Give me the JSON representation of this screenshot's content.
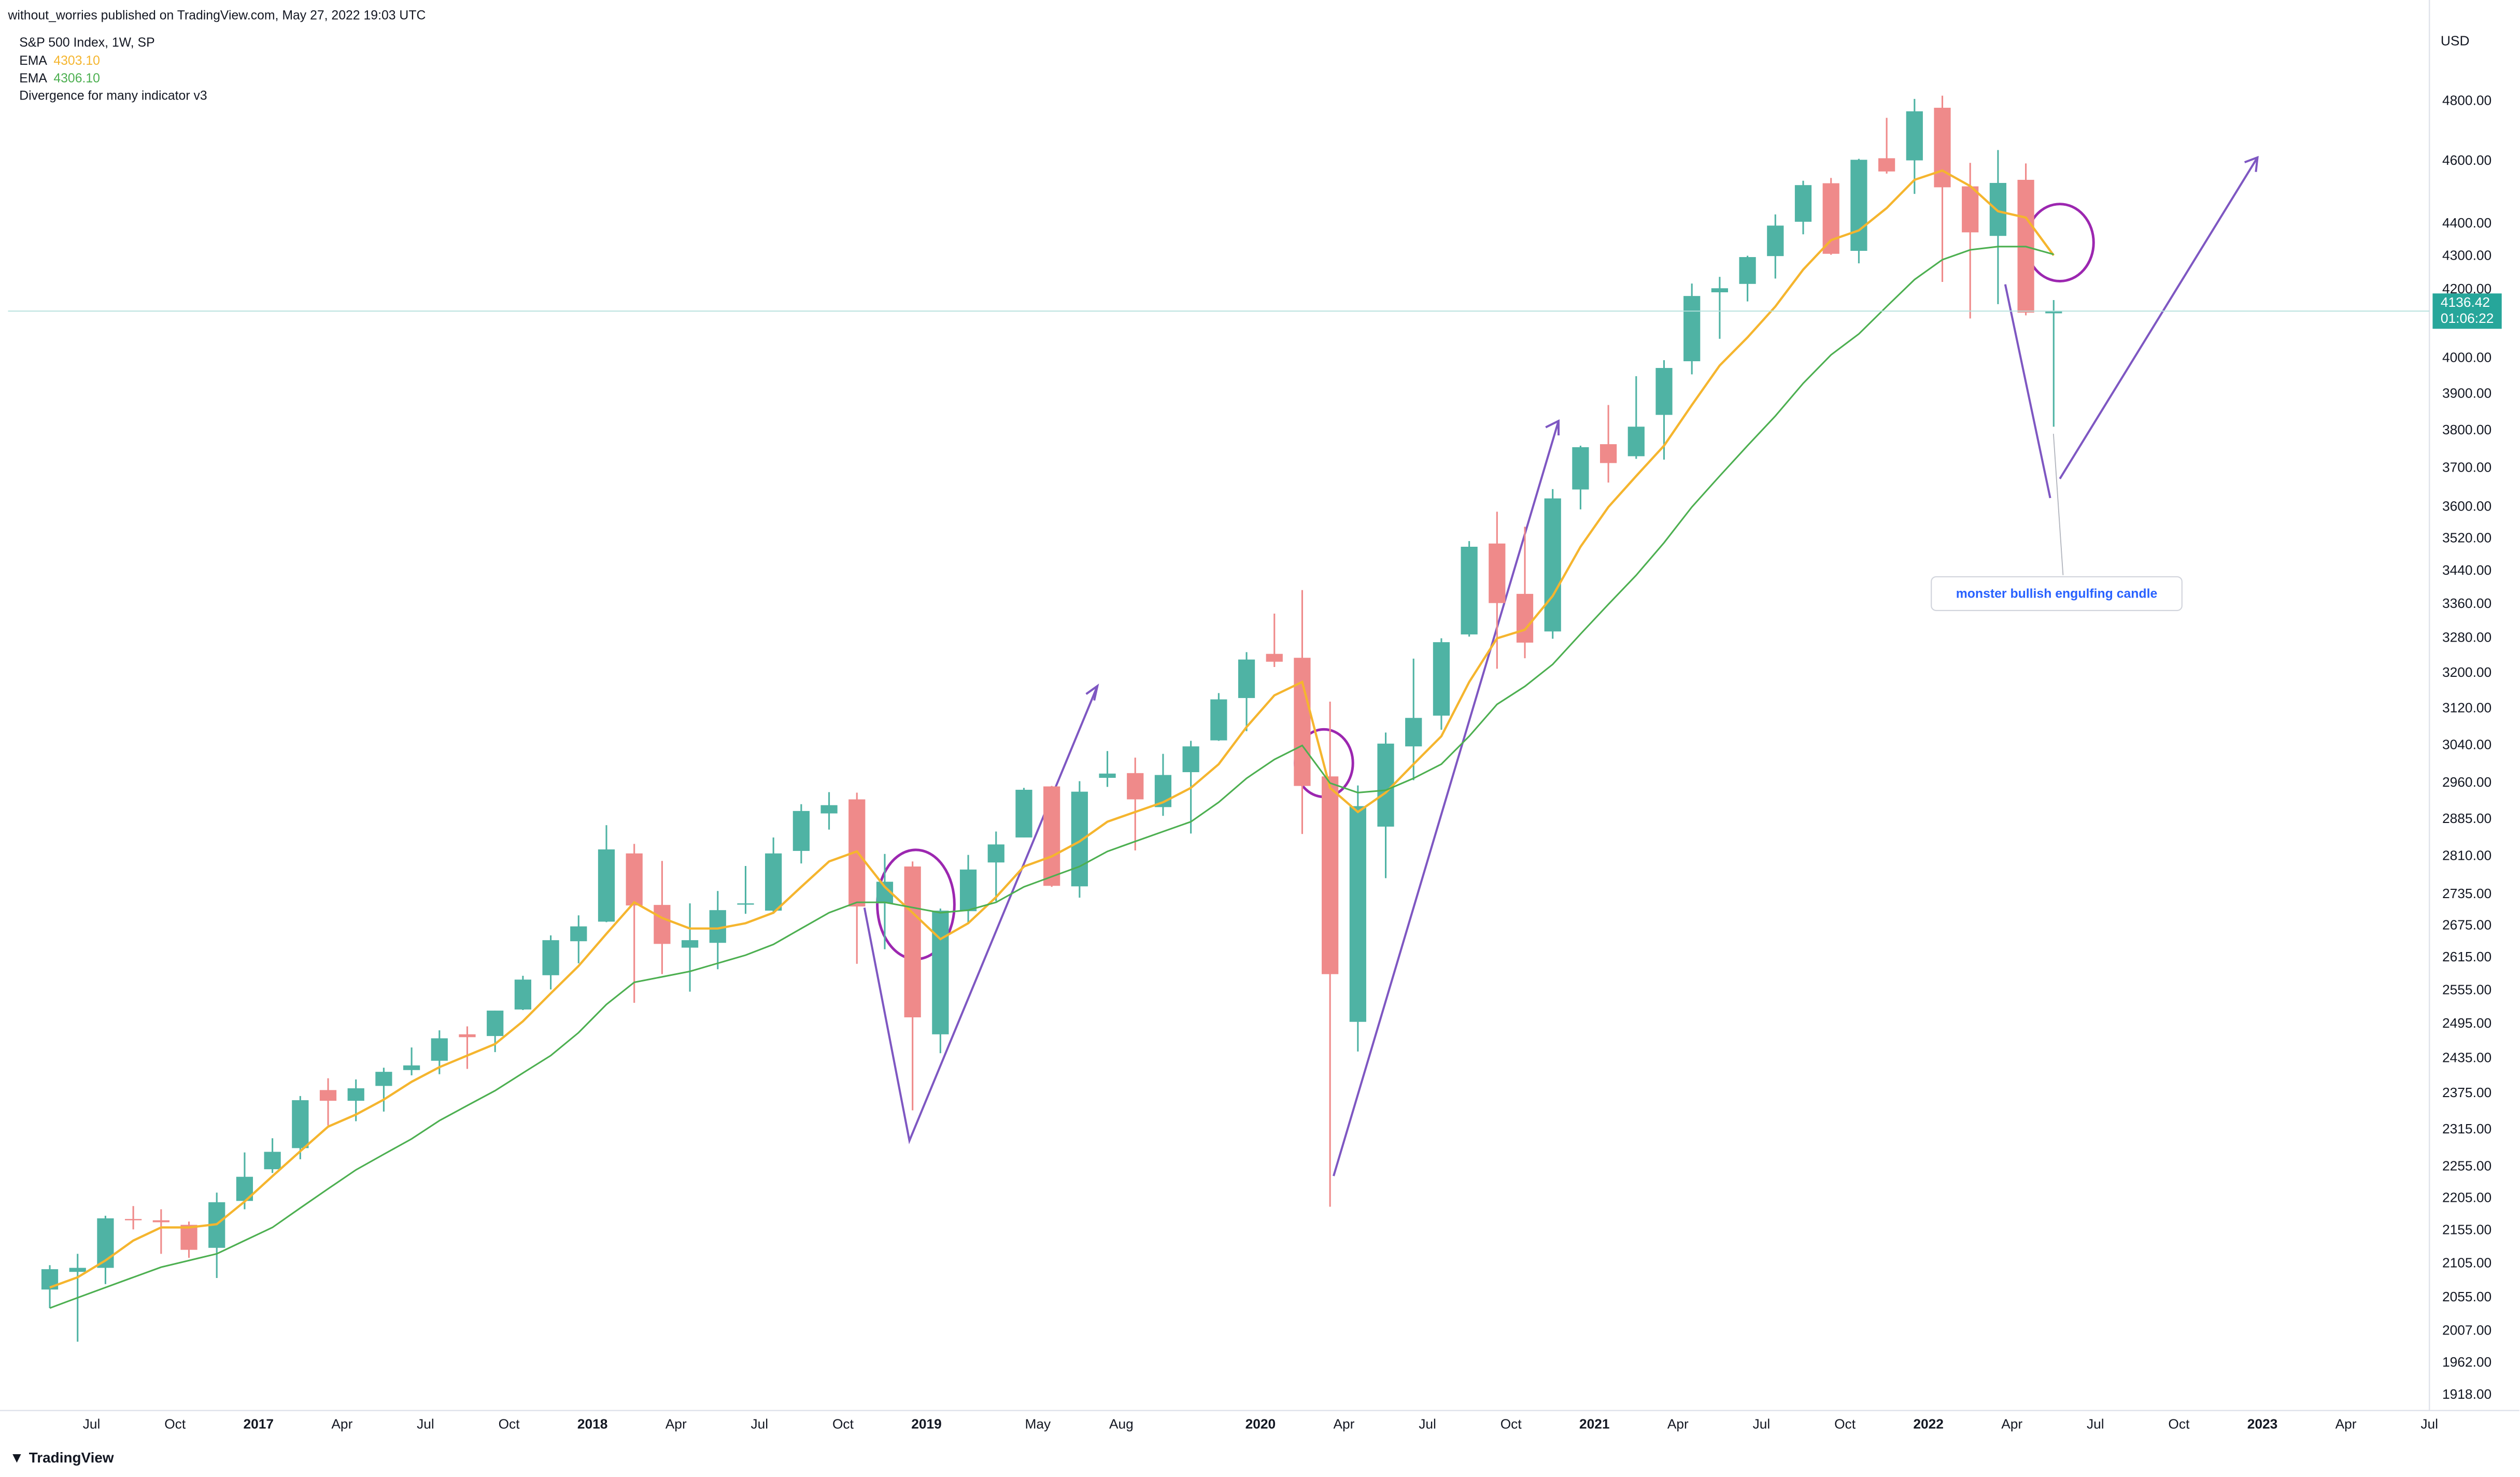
{
  "chart_data": {
    "type": "candlestick",
    "publisher": "without_worries published on TradingView.com, May 27, 2022 19:03 UTC",
    "title": "S&P 500 Index, 1W, SP",
    "indicator": "Divergence for many indicator v3",
    "currency": "USD",
    "countdown": "01:06:22",
    "annotation": "monster bullish engulfing candle",
    "brand": "TradingView",
    "log_scale": true,
    "grid": false,
    "up_color": "#4fb3a4",
    "down_color": "#ef8a8a",
    "x": [
      "2016-05",
      "2016-06",
      "2016-07",
      "2016-08",
      "2016-09",
      "2016-10",
      "2016-11",
      "2016-12",
      "2017-01",
      "2017-02",
      "2017-03",
      "2017-04",
      "2017-05",
      "2017-06",
      "2017-07",
      "2017-08",
      "2017-09",
      "2017-10",
      "2017-11",
      "2017-12",
      "2018-01",
      "2018-02",
      "2018-03",
      "2018-04",
      "2018-05",
      "2018-06",
      "2018-07",
      "2018-08",
      "2018-09",
      "2018-10",
      "2018-11",
      "2018-12",
      "2019-01",
      "2019-02",
      "2019-03",
      "2019-04",
      "2019-05",
      "2019-06",
      "2019-07",
      "2019-08",
      "2019-09",
      "2019-10",
      "2019-11",
      "2019-12",
      "2020-01",
      "2020-02",
      "2020-03",
      "2020-04",
      "2020-05",
      "2020-06",
      "2020-07",
      "2020-08",
      "2020-09",
      "2020-10",
      "2020-11",
      "2020-12",
      "2021-01",
      "2021-02",
      "2021-03",
      "2021-04",
      "2021-05",
      "2021-06",
      "2021-07",
      "2021-08",
      "2021-09",
      "2021-10",
      "2021-11",
      "2021-12",
      "2022-01",
      "2022-02",
      "2022-03",
      "2022-04",
      "2022-05"
    ],
    "open": [
      2067,
      2093,
      2099,
      2173,
      2171,
      2164,
      2129,
      2201,
      2251,
      2285,
      2381,
      2363,
      2388,
      2415,
      2431,
      2477,
      2474,
      2521,
      2583,
      2646,
      2683,
      2816,
      2715,
      2634,
      2643,
      2718,
      2704,
      2821,
      2897,
      2926,
      2718,
      2790,
      2477,
      2703,
      2798,
      2848,
      2953,
      2751,
      2971,
      2981,
      2910,
      2983,
      3051,
      3144,
      3244,
      3235,
      2974,
      2499,
      2870,
      3038,
      3105,
      3289,
      3508,
      3385,
      3296,
      3645,
      3764,
      3732,
      3843,
      3992,
      4192,
      4217,
      4301,
      4407,
      4529,
      4317,
      4610,
      4603,
      4778,
      4519,
      4363,
      4540,
      4130
    ],
    "high": [
      2103,
      2120,
      2178,
      2193,
      2188,
      2169,
      2214,
      2278,
      2301,
      2371,
      2401,
      2399,
      2419,
      2454,
      2484,
      2491,
      2519,
      2582,
      2657,
      2695,
      2873,
      2835,
      2801,
      2718,
      2742,
      2791,
      2848,
      2916,
      2941,
      2940,
      2815,
      2800,
      2708,
      2813,
      2860,
      2950,
      2954,
      2964,
      3028,
      3014,
      3022,
      3050,
      3155,
      3248,
      3338,
      3394,
      3136,
      2955,
      3068,
      3233,
      3280,
      3514,
      3588,
      3550,
      3646,
      3760,
      3870,
      3950,
      3995,
      4218,
      4238,
      4302,
      4430,
      4537,
      4546,
      4608,
      4744,
      4808,
      4819,
      4595,
      4637,
      4593,
      4169
    ],
    "low": [
      2040,
      1992,
      2075,
      2157,
      2120,
      2114,
      2084,
      2188,
      2245,
      2267,
      2322,
      2329,
      2345,
      2406,
      2408,
      2417,
      2446,
      2520,
      2557,
      2605,
      2682,
      2533,
      2585,
      2553,
      2594,
      2698,
      2698,
      2796,
      2864,
      2604,
      2631,
      2347,
      2444,
      2681,
      2722,
      2848,
      2750,
      2729,
      2952,
      2822,
      2892,
      2856,
      3050,
      3071,
      3214,
      2855,
      2192,
      2447,
      2767,
      2966,
      3074,
      3284,
      3210,
      3234,
      3279,
      3594,
      3663,
      3725,
      3723,
      3955,
      4056,
      4165,
      4233,
      4368,
      4305,
      4279,
      4560,
      4495,
      4223,
      4115,
      4157,
      4124,
      3811
    ],
    "close": [
      2097,
      2099,
      2174,
      2171,
      2168,
      2126,
      2199,
      2239,
      2279,
      2364,
      2363,
      2384,
      2412,
      2423,
      2470,
      2472,
      2519,
      2575,
      2648,
      2674,
      2824,
      2714,
      2641,
      2648,
      2705,
      2718,
      2816,
      2902,
      2914,
      2712,
      2760,
      2507,
      2704,
      2784,
      2834,
      2946,
      2752,
      2942,
      2980,
      2926,
      2977,
      3038,
      3141,
      3231,
      3226,
      2954,
      2585,
      2912,
      3044,
      3100,
      3271,
      3500,
      3363,
      3270,
      3622,
      3756,
      3714,
      3811,
      3973,
      4181,
      4204,
      4298,
      4395,
      4523,
      4308,
      4605,
      4567,
      4766,
      4516,
      4374,
      4530,
      4132,
      4136.42
    ],
    "series": [
      {
        "name": "EMA",
        "color": "#f5b52e",
        "legend_value": "4303.10",
        "values": [
          2070,
          2085,
          2110,
          2140,
          2160,
          2160,
          2165,
          2200,
          2240,
          2280,
          2320,
          2340,
          2365,
          2395,
          2420,
          2440,
          2460,
          2500,
          2550,
          2600,
          2660,
          2720,
          2690,
          2670,
          2670,
          2680,
          2700,
          2750,
          2800,
          2820,
          2750,
          2700,
          2650,
          2680,
          2730,
          2790,
          2810,
          2840,
          2880,
          2900,
          2920,
          2950,
          3000,
          3080,
          3150,
          3180,
          2950,
          2900,
          2940,
          3000,
          3060,
          3180,
          3280,
          3300,
          3380,
          3500,
          3600,
          3680,
          3760,
          3870,
          3980,
          4060,
          4150,
          4260,
          4350,
          4380,
          4450,
          4540,
          4570,
          4520,
          4440,
          4420,
          4303.1
        ]
      },
      {
        "name": "EMA",
        "color": "#4caf50",
        "legend_value": "4306.10",
        "values": [
          2040,
          2055,
          2070,
          2085,
          2100,
          2110,
          2120,
          2140,
          2160,
          2190,
          2220,
          2250,
          2275,
          2300,
          2330,
          2355,
          2380,
          2410,
          2440,
          2480,
          2530,
          2570,
          2580,
          2590,
          2605,
          2620,
          2640,
          2670,
          2700,
          2720,
          2720,
          2710,
          2700,
          2705,
          2720,
          2750,
          2770,
          2790,
          2820,
          2840,
          2860,
          2880,
          2920,
          2970,
          3010,
          3040,
          2960,
          2940,
          2945,
          2970,
          3000,
          3060,
          3130,
          3170,
          3220,
          3290,
          3360,
          3430,
          3510,
          3600,
          3680,
          3760,
          3840,
          3930,
          4010,
          4070,
          4150,
          4230,
          4290,
          4320,
          4330,
          4330,
          4306.1
        ]
      }
    ],
    "xlim": [
      "2016-04",
      "2023-07"
    ],
    "ylim": [
      1897,
      5070
    ],
    "xticks": [
      {
        "value": "2016-07",
        "label": "Jul"
      },
      {
        "value": "2016-10",
        "label": "Oct"
      },
      {
        "value": "2017-01",
        "label": "2017"
      },
      {
        "value": "2017-04",
        "label": "Apr"
      },
      {
        "value": "2017-07",
        "label": "Jul"
      },
      {
        "value": "2017-10",
        "label": "Oct"
      },
      {
        "value": "2018-01",
        "label": "2018"
      },
      {
        "value": "2018-04",
        "label": "Apr"
      },
      {
        "value": "2018-07",
        "label": "Jul"
      },
      {
        "value": "2018-10",
        "label": "Oct"
      },
      {
        "value": "2019-01",
        "label": "2019"
      },
      {
        "value": "2019-05",
        "label": "May"
      },
      {
        "value": "2019-08",
        "label": "Aug"
      },
      {
        "value": "2020-01",
        "label": "2020"
      },
      {
        "value": "2020-04",
        "label": "Apr"
      },
      {
        "value": "2020-07",
        "label": "Jul"
      },
      {
        "value": "2020-10",
        "label": "Oct"
      },
      {
        "value": "2021-01",
        "label": "2021"
      },
      {
        "value": "2021-04",
        "label": "Apr"
      },
      {
        "value": "2021-07",
        "label": "Jul"
      },
      {
        "value": "2021-10",
        "label": "Oct"
      },
      {
        "value": "2022-01",
        "label": "2022"
      },
      {
        "value": "2022-04",
        "label": "Apr"
      },
      {
        "value": "2022-07",
        "label": "Jul"
      },
      {
        "value": "2022-10",
        "label": "Oct"
      },
      {
        "value": "2023-01",
        "label": "2023"
      },
      {
        "value": "2023-04",
        "label": "Apr"
      },
      {
        "value": "2023-07",
        "label": "Jul"
      }
    ],
    "yticks": [
      {
        "value": 1918,
        "label": "1918.00"
      },
      {
        "value": 1962,
        "label": "1962.00"
      },
      {
        "value": 2007,
        "label": "2007.00"
      },
      {
        "value": 2055,
        "label": "2055.00"
      },
      {
        "value": 2105,
        "label": "2105.00"
      },
      {
        "value": 2155,
        "label": "2155.00"
      },
      {
        "value": 2205,
        "label": "2205.00"
      },
      {
        "value": 2255,
        "label": "2255.00"
      },
      {
        "value": 2315,
        "label": "2315.00"
      },
      {
        "value": 2375,
        "label": "2375.00"
      },
      {
        "value": 2435,
        "label": "2435.00"
      },
      {
        "value": 2495,
        "label": "2495.00"
      },
      {
        "value": 2555,
        "label": "2555.00"
      },
      {
        "value": 2615,
        "label": "2615.00"
      },
      {
        "value": 2675,
        "label": "2675.00"
      },
      {
        "value": 2735,
        "label": "2735.00"
      },
      {
        "value": 2810,
        "label": "2810.00"
      },
      {
        "value": 2885,
        "label": "2885.00"
      },
      {
        "value": 2960,
        "label": "2960.00"
      },
      {
        "value": 3040,
        "label": "3040.00"
      },
      {
        "value": 3120,
        "label": "3120.00"
      },
      {
        "value": 3200,
        "label": "3200.00"
      },
      {
        "value": 3280,
        "label": "3280.00"
      },
      {
        "value": 3360,
        "label": "3360.00"
      },
      {
        "value": 3440,
        "label": "3440.00"
      },
      {
        "value": 3520,
        "label": "3520.00"
      },
      {
        "value": 3600,
        "label": "3600.00"
      },
      {
        "value": 3700,
        "label": "3700.00"
      },
      {
        "value": 3800,
        "label": "3800.00"
      },
      {
        "value": 3900,
        "label": "3900.00"
      },
      {
        "value": 4000,
        "label": "4000.00"
      },
      {
        "value": 4200,
        "label": "4200.00"
      },
      {
        "value": 4300,
        "label": "4300.00"
      },
      {
        "value": 4400,
        "label": "4400.00"
      },
      {
        "value": 4600,
        "label": "4600.00"
      },
      {
        "value": 4800,
        "label": "4800.00"
      }
    ]
  }
}
